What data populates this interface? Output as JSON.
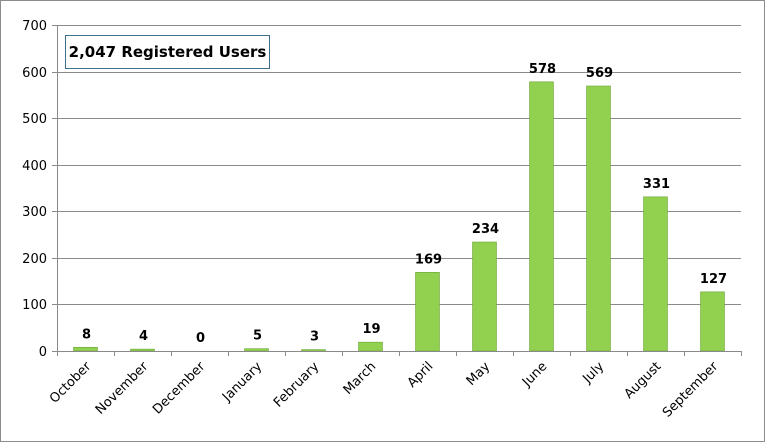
{
  "chart_data": {
    "type": "bar",
    "title": "2,047 Registered Users",
    "xlabel": "",
    "ylabel": "",
    "categories": [
      "October",
      "November",
      "December",
      "January",
      "February",
      "March",
      "April",
      "May",
      "June",
      "July",
      "August",
      "September"
    ],
    "values": [
      8,
      4,
      0,
      5,
      3,
      19,
      169,
      234,
      578,
      569,
      331,
      127
    ],
    "data_labels": [
      "8",
      "4",
      "0",
      "5",
      "3",
      "19",
      "169",
      "234",
      "578",
      "569",
      "331",
      "127"
    ],
    "yticks": [
      0,
      100,
      200,
      300,
      400,
      500,
      600,
      700
    ],
    "ylim": [
      0,
      700
    ],
    "grid": true,
    "bar_color": "#92d050"
  }
}
